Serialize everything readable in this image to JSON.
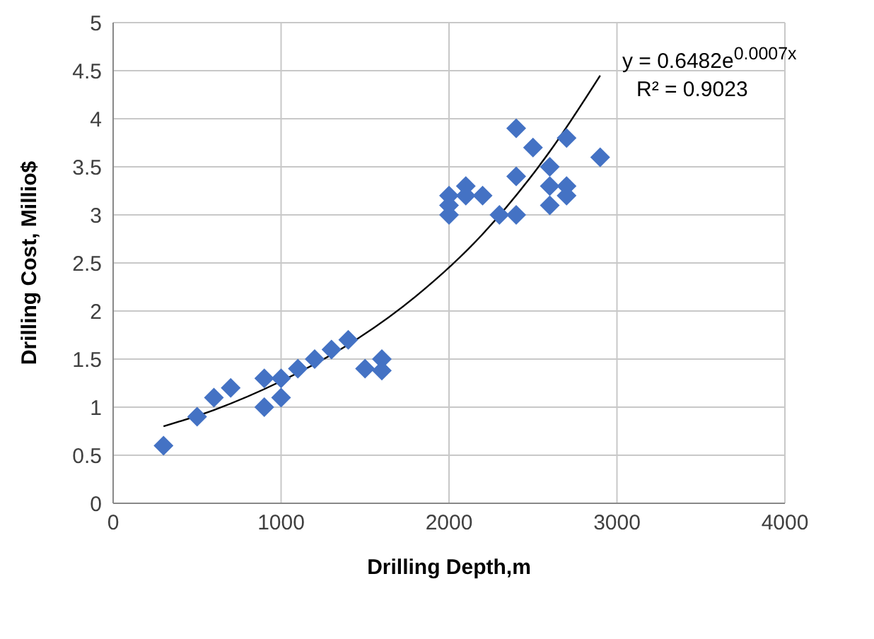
{
  "chart_data": {
    "type": "scatter",
    "xlabel": "Drilling Depth,m",
    "ylabel": "Drilling Cost,  Millio$",
    "xlim": [
      0,
      4000
    ],
    "xticks": [
      0,
      1000,
      2000,
      3000,
      4000
    ],
    "ylim": [
      0,
      5
    ],
    "yticks": [
      0,
      0.5,
      1,
      1.5,
      2,
      2.5,
      3,
      3.5,
      4,
      4.5,
      5
    ],
    "grid": true,
    "marker": "diamond",
    "annotations": [
      "y = 0.6482e$^{0.0007x}$",
      "R² = 0.9023"
    ],
    "series": [
      {
        "color": "#4472c4",
        "x": [
          300,
          500,
          600,
          700,
          900,
          900,
          1000,
          1000,
          1100,
          1200,
          1300,
          1400,
          1500,
          1600,
          1600,
          2000,
          2000,
          2000,
          2100,
          2100,
          2200,
          2300,
          2400,
          2400,
          2400,
          2500,
          2600,
          2600,
          2600,
          2700,
          2700,
          2700,
          2900
        ],
        "values": [
          0.6,
          0.9,
          1.1,
          1.2,
          1.3,
          1.0,
          1.3,
          1.1,
          1.4,
          1.5,
          1.6,
          1.7,
          1.4,
          1.5,
          1.38,
          3.0,
          3.1,
          3.2,
          3.3,
          3.2,
          3.2,
          3.0,
          3.9,
          3.4,
          3.0,
          3.7,
          3.5,
          3.3,
          3.1,
          3.8,
          3.3,
          3.2,
          3.6
        ]
      },
      {
        "type": "line",
        "color": "#000000",
        "marker": "none",
        "x": [
          300,
          600,
          1000,
          1400,
          1800,
          2200,
          2600,
          2900
        ],
        "values": [
          0.8,
          0.97,
          1.27,
          1.65,
          2.15,
          2.8,
          3.66,
          4.45
        ]
      }
    ]
  }
}
